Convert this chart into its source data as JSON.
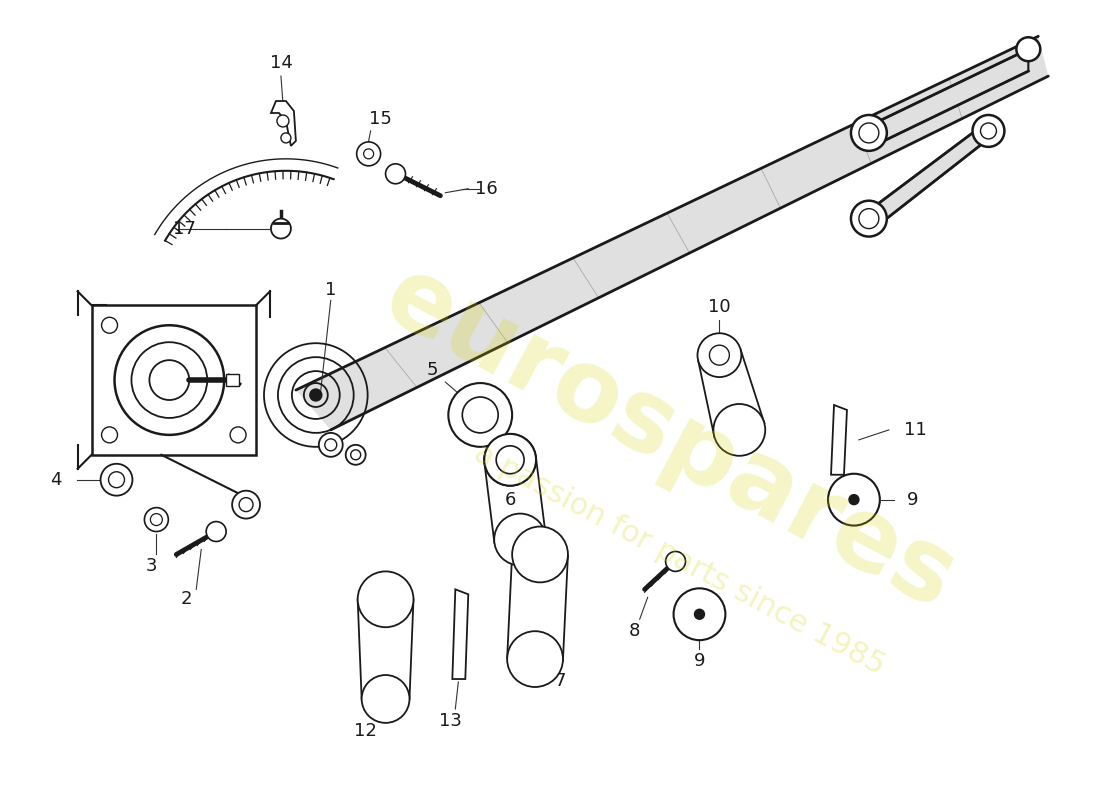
{
  "bg_color": "#ffffff",
  "line_color": "#1a1a1a",
  "watermark_color": "#d4d400",
  "watermark_text1": "eurospares",
  "watermark_text2": "a passion for parts since 1985",
  "fig_width": 11.0,
  "fig_height": 8.0
}
